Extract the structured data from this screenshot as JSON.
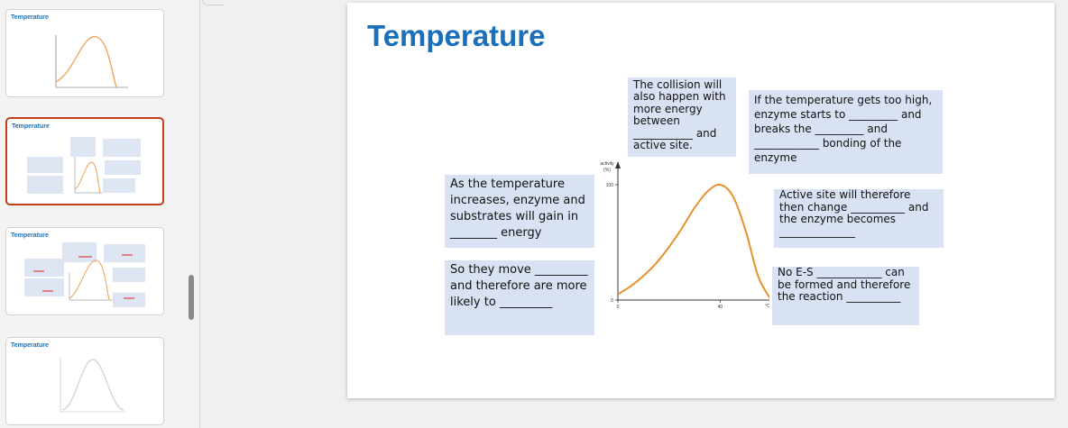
{
  "thumbnails": [
    {
      "title": "Temperature",
      "selected": false
    },
    {
      "title": "Temperature",
      "selected": true
    },
    {
      "title": "Temperature",
      "selected": false
    },
    {
      "title": "Temperature",
      "selected": false
    }
  ],
  "slide": {
    "title": "Temperature",
    "boxes": {
      "collision": "The collision will also happen with more energy between ___________ and active site.",
      "too_high": "If the temperature gets too high, enzyme starts to _________ and breaks the _________ and ____________ bonding of the enzyme",
      "increases": "As the temperature increases, enzyme and substrates will gain in ________ energy",
      "active_site": "Active site will therefore then change __________ and the enzyme becomes ______________",
      "so_they_move": "So they move _________ and therefore are more likely to _________",
      "no_es": "No E-S ____________ can be formed and therefore the reaction __________"
    },
    "chart": {
      "y_label_line1": "activity",
      "y_label_line2": "(%)",
      "x_label": "°C"
    }
  },
  "chart_data": {
    "type": "line",
    "x": [
      0,
      5,
      10,
      15,
      20,
      25,
      30,
      35,
      40,
      45,
      50,
      55,
      60
    ],
    "series": [
      {
        "values": [
          5,
          12,
          21,
          32,
          46,
          62,
          80,
          94,
          100,
          90,
          60,
          20,
          0
        ]
      }
    ],
    "yticks": [
      0,
      100
    ],
    "xticks": [
      0,
      40
    ],
    "xlabel": "°C",
    "ylabel": "activity (%)",
    "xlim": [
      0,
      60
    ],
    "ylim": [
      0,
      100
    ],
    "line_color": "#e8912c"
  }
}
